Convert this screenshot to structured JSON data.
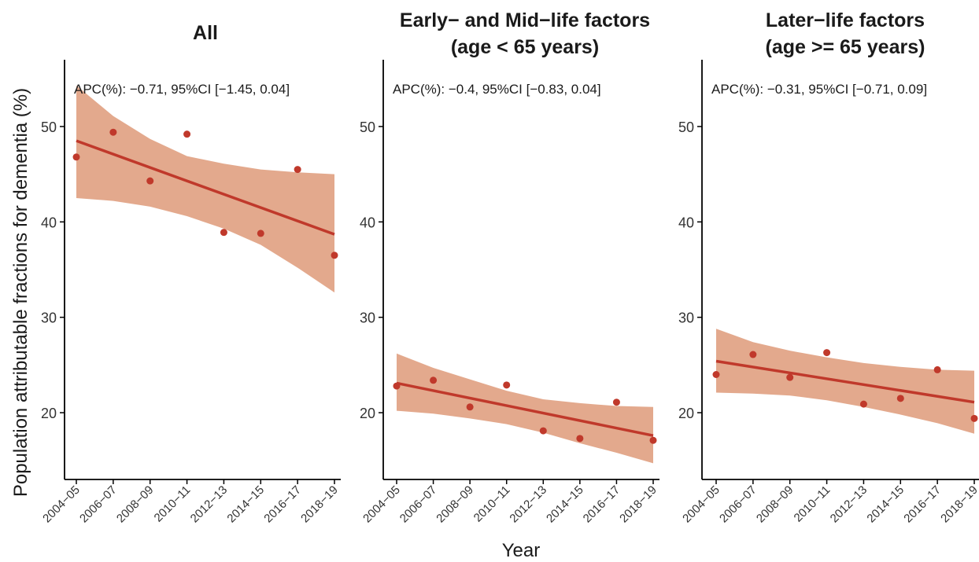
{
  "chart_data": {
    "type": "line",
    "ylabel": "Population attributable fractions for dementia (%)",
    "xlabel": "Year",
    "categories": [
      "2004−05",
      "2006−07",
      "2008−09",
      "2010−11",
      "2012−13",
      "2014−15",
      "2016−17",
      "2018−19"
    ],
    "ylim": [
      13,
      57
    ],
    "yticks": [
      20,
      30,
      40,
      50
    ],
    "colors": {
      "fit_line": "#c0392b",
      "ci_band": "#e0a081",
      "points": "#c0392b",
      "axis": "#000000"
    },
    "grid": false,
    "panels": [
      {
        "title_lines": [
          "All"
        ],
        "apc": "APC(%): −0.71, 95%CI [−1.45, 0.04]",
        "points": [
          46.8,
          49.4,
          44.3,
          49.2,
          38.9,
          38.8,
          45.5,
          36.5
        ],
        "fit": [
          48.5,
          38.7
        ],
        "ci_lower": [
          42.5,
          42.2,
          41.6,
          40.6,
          39.3,
          37.6,
          35.2,
          32.6
        ],
        "ci_upper": [
          54.3,
          51.1,
          48.7,
          46.9,
          46.1,
          45.5,
          45.2,
          45.0
        ]
      },
      {
        "title_lines": [
          "Early− and Mid−life factors",
          "(age < 65 years)"
        ],
        "apc": "APC(%): −0.4, 95%CI [−0.83, 0.04]",
        "points": [
          22.8,
          23.4,
          20.6,
          22.9,
          18.1,
          17.3,
          21.1,
          17.1
        ],
        "fit": [
          23.1,
          17.6
        ],
        "ci_lower": [
          20.2,
          19.9,
          19.4,
          18.8,
          17.9,
          16.8,
          15.8,
          14.7
        ],
        "ci_upper": [
          26.2,
          24.7,
          23.5,
          22.3,
          21.4,
          21.0,
          20.7,
          20.6
        ]
      },
      {
        "title_lines": [
          "Later−life factors",
          "(age >= 65 years)"
        ],
        "apc": "APC(%): −0.31, 95%CI [−0.71, 0.09]",
        "points": [
          24.0,
          26.1,
          23.7,
          26.3,
          20.9,
          21.5,
          24.5,
          19.4
        ],
        "fit": [
          25.4,
          21.1
        ],
        "ci_lower": [
          22.1,
          22.0,
          21.8,
          21.3,
          20.6,
          19.8,
          18.9,
          17.8
        ],
        "ci_upper": [
          28.8,
          27.4,
          26.5,
          25.8,
          25.2,
          24.8,
          24.5,
          24.4
        ]
      }
    ]
  }
}
